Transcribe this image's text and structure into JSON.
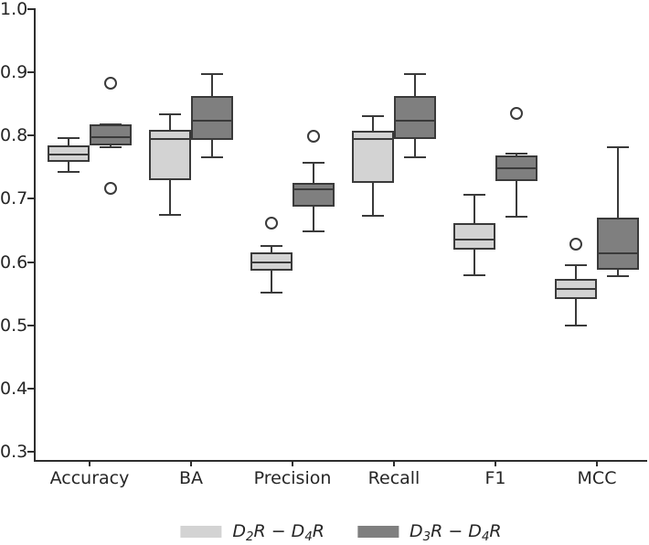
{
  "figure": {
    "background": "#ffffff",
    "text_color": "#262626",
    "line_color": "#3a3a3a"
  },
  "chart_data": {
    "type": "boxplot",
    "title": "",
    "xlabel": "",
    "ylabel": "",
    "categories": [
      "Accuracy",
      "BA",
      "Precision",
      "Recall",
      "F1",
      "MCC"
    ],
    "ylim": [
      0.287,
      1.0
    ],
    "y_ticks": [
      "1.0",
      "0.9",
      "0.8",
      "0.7",
      "0.6",
      "0.5",
      "0.4",
      "0.3"
    ],
    "y_tick_values": [
      1.0,
      0.9,
      0.8,
      0.7,
      0.6,
      0.5,
      0.4,
      0.3
    ],
    "grid": false,
    "legend_position": "bottom-center",
    "series": [
      {
        "name": "D2R-D4R",
        "label_parts": [
          "D",
          "2",
          "R − D",
          "4",
          "R"
        ],
        "fill": "#d3d3d3",
        "boxes": [
          {
            "category": "Accuracy",
            "whislo": 0.742,
            "q1": 0.759,
            "med": 0.77,
            "q3": 0.785,
            "whishi": 0.796,
            "outliers": []
          },
          {
            "category": "BA",
            "whislo": 0.674,
            "q1": 0.729,
            "med": 0.794,
            "q3": 0.809,
            "whishi": 0.833,
            "outliers": []
          },
          {
            "category": "Precision",
            "whislo": 0.551,
            "q1": 0.586,
            "med": 0.6,
            "q3": 0.615,
            "whishi": 0.625,
            "outliers": [
              0.662
            ]
          },
          {
            "category": "Recall",
            "whislo": 0.673,
            "q1": 0.725,
            "med": 0.794,
            "q3": 0.807,
            "whishi": 0.831,
            "outliers": []
          },
          {
            "category": "F1",
            "whislo": 0.579,
            "q1": 0.62,
            "med": 0.635,
            "q3": 0.661,
            "whishi": 0.707,
            "outliers": []
          },
          {
            "category": "MCC",
            "whislo": 0.5,
            "q1": 0.542,
            "med": 0.558,
            "q3": 0.573,
            "whishi": 0.595,
            "outliers": [
              0.628
            ]
          }
        ]
      },
      {
        "name": "D3R-D4R",
        "label_parts": [
          "D",
          "3",
          "R − D",
          "4",
          "R"
        ],
        "fill": "#7f7f7f",
        "boxes": [
          {
            "category": "Accuracy",
            "whislo": 0.782,
            "q1": 0.785,
            "med": 0.797,
            "q3": 0.818,
            "whishi": 0.818,
            "outliers": [
              0.883,
              0.716
            ]
          },
          {
            "category": "BA",
            "whislo": 0.765,
            "q1": 0.793,
            "med": 0.823,
            "q3": 0.862,
            "whishi": 0.897,
            "outliers": []
          },
          {
            "category": "Precision",
            "whislo": 0.648,
            "q1": 0.687,
            "med": 0.715,
            "q3": 0.725,
            "whishi": 0.757,
            "outliers": [
              0.799
            ]
          },
          {
            "category": "Recall",
            "whislo": 0.766,
            "q1": 0.794,
            "med": 0.824,
            "q3": 0.862,
            "whishi": 0.897,
            "outliers": []
          },
          {
            "category": "F1",
            "whislo": 0.671,
            "q1": 0.728,
            "med": 0.748,
            "q3": 0.768,
            "whishi": 0.772,
            "outliers": [
              0.835
            ]
          },
          {
            "category": "MCC",
            "whislo": 0.578,
            "q1": 0.588,
            "med": 0.614,
            "q3": 0.67,
            "whishi": 0.781,
            "outliers": []
          }
        ]
      }
    ]
  }
}
